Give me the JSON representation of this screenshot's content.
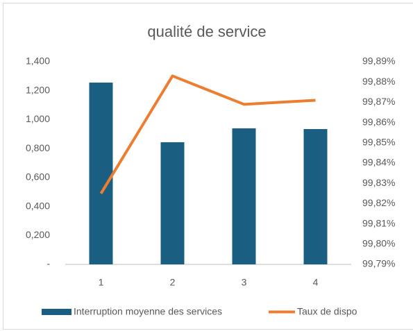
{
  "chart_data": {
    "type": "combo",
    "title": "qualité de service",
    "categories": [
      "1",
      "2",
      "3",
      "4"
    ],
    "series": [
      {
        "name": "Interruption moyenne des services",
        "type": "bar",
        "color": "#1a5f82",
        "values": [
          1.256,
          0.844,
          0.94,
          0.935
        ]
      },
      {
        "name": "Taux de dispo",
        "type": "line",
        "axis": "y2",
        "color": "#ed7d31",
        "values": [
          99.825,
          99.883,
          99.869,
          99.871
        ]
      }
    ],
    "ylim": [
      0,
      1.4
    ],
    "yticks": [
      {
        "value": 0,
        "label": "-"
      },
      {
        "value": 0.2,
        "label": "0,200"
      },
      {
        "value": 0.4,
        "label": "0,400"
      },
      {
        "value": 0.6,
        "label": "0,600"
      },
      {
        "value": 0.8,
        "label": "0,800"
      },
      {
        "value": 1.0,
        "label": "1,000"
      },
      {
        "value": 1.2,
        "label": "1,200"
      },
      {
        "value": 1.4,
        "label": "1,400"
      }
    ],
    "y2lim": [
      99.79,
      99.89
    ],
    "y2ticks": [
      {
        "value": 99.79,
        "label": "99,79%"
      },
      {
        "value": 99.8,
        "label": "99,80%"
      },
      {
        "value": 99.81,
        "label": "99,81%"
      },
      {
        "value": 99.82,
        "label": "99,82%"
      },
      {
        "value": 99.83,
        "label": "99,83%"
      },
      {
        "value": 99.84,
        "label": "99,84%"
      },
      {
        "value": 99.85,
        "label": "99,85%"
      },
      {
        "value": 99.86,
        "label": "99,86%"
      },
      {
        "value": 99.87,
        "label": "99,87%"
      },
      {
        "value": 99.88,
        "label": "99,88%"
      },
      {
        "value": 99.89,
        "label": "99,89%"
      }
    ],
    "grid": false,
    "legend": "bottom"
  }
}
